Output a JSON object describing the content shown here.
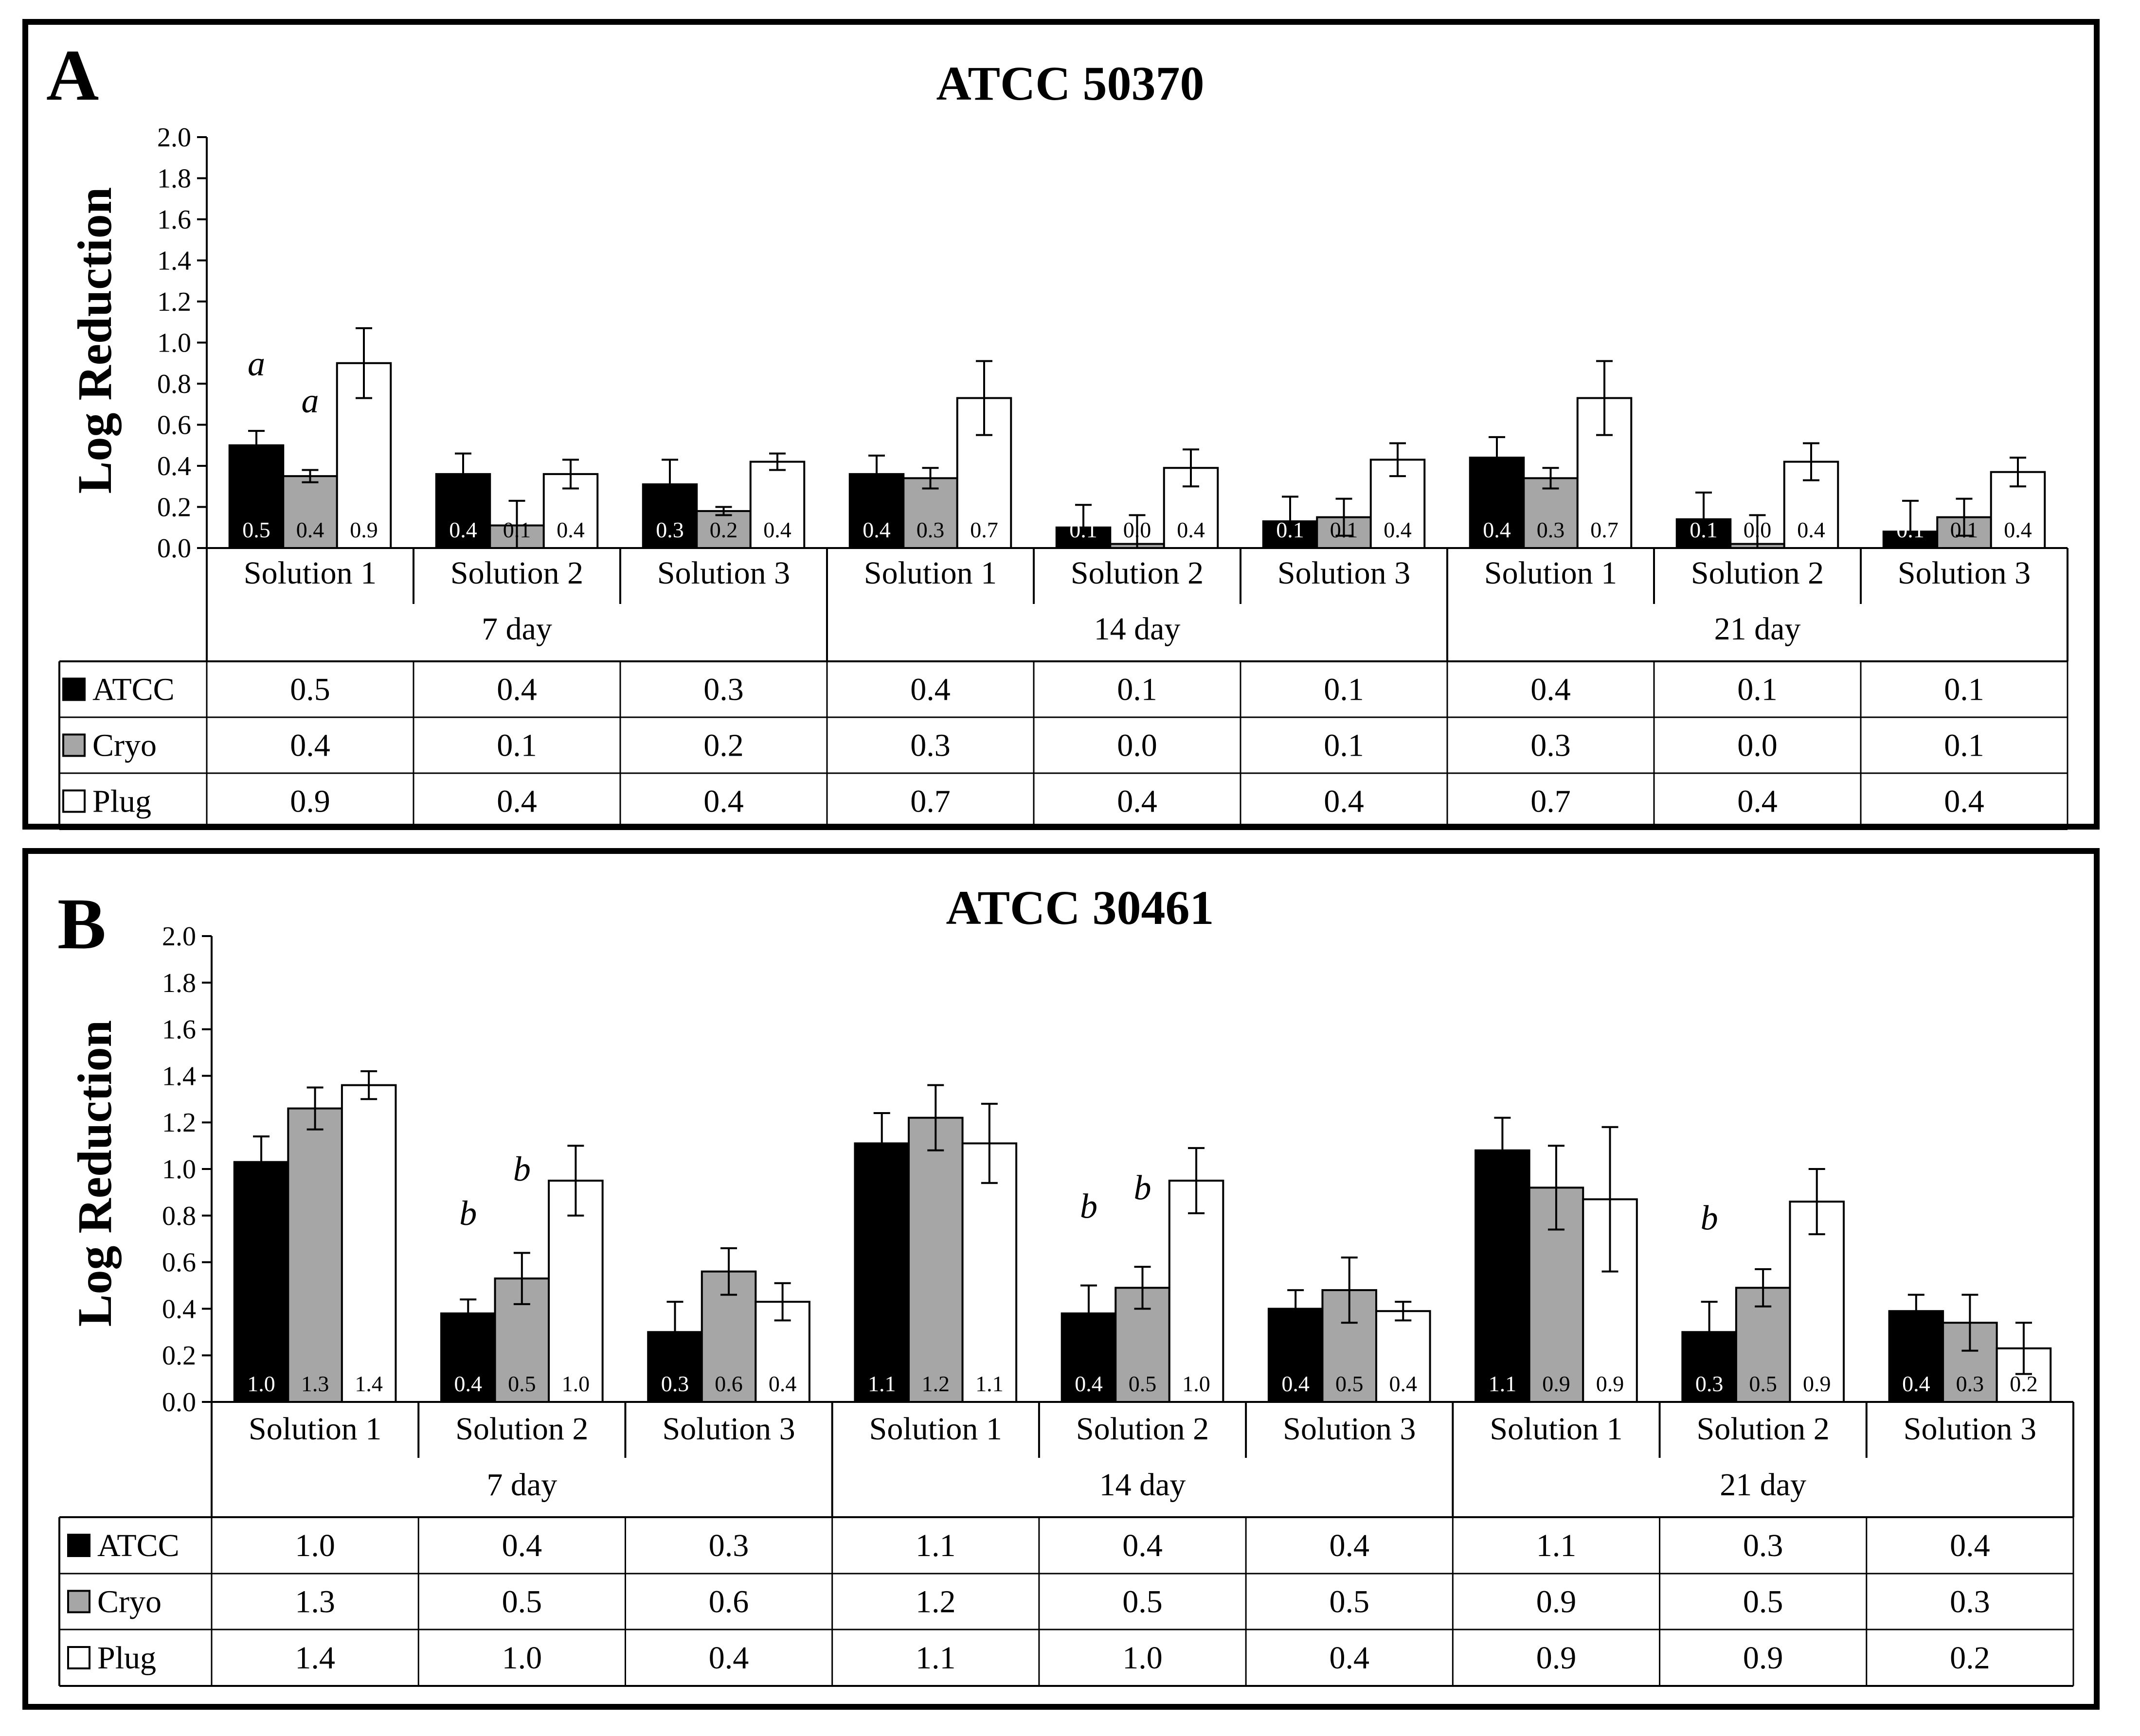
{
  "legend_colors": {
    "ATCC": "#000000",
    "Cryo": "#a6a6a6",
    "Plug": "#ffffff"
  },
  "chart_data": [
    {
      "type": "bar",
      "panel_letter": "A",
      "title": "ATCC 50370",
      "ylabel": "Log Reduction",
      "xlabel": "",
      "ylim": [
        0,
        2.0
      ],
      "yticks": [
        "0.0",
        "0.2",
        "0.4",
        "0.6",
        "0.8",
        "1.0",
        "1.2",
        "1.4",
        "1.6",
        "1.8",
        "2.0"
      ],
      "groups": [
        "7 day",
        "14 day",
        "21 day"
      ],
      "categories": [
        "Solution 1",
        "Solution 2",
        "Solution 3",
        "Solution 1",
        "Solution 2",
        "Solution 3",
        "Solution 1",
        "Solution 2",
        "Solution 3"
      ],
      "series": [
        {
          "name": "ATCC",
          "values": [
            0.5,
            0.36,
            0.31,
            0.36,
            0.1,
            0.13,
            0.44,
            0.14,
            0.08
          ],
          "errors": [
            0.07,
            0.1,
            0.12,
            0.09,
            0.11,
            0.12,
            0.1,
            0.13,
            0.15
          ],
          "labels": [
            "0.5",
            "0.4",
            "0.3",
            "0.4",
            "0.1",
            "0.1",
            "0.4",
            "0.1",
            "0.1"
          ]
        },
        {
          "name": "Cryo",
          "values": [
            0.35,
            0.11,
            0.18,
            0.34,
            0.02,
            0.15,
            0.34,
            0.02,
            0.15
          ],
          "errors": [
            0.03,
            0.12,
            0.02,
            0.05,
            0.14,
            0.09,
            0.05,
            0.14,
            0.09
          ],
          "labels": [
            "0.4",
            "0.1",
            "0.2",
            "0.3",
            "0.0",
            "0.1",
            "0.3",
            "0.0",
            "0.1"
          ]
        },
        {
          "name": "Plug",
          "values": [
            0.9,
            0.36,
            0.42,
            0.73,
            0.39,
            0.43,
            0.73,
            0.42,
            0.37
          ],
          "errors": [
            0.17,
            0.07,
            0.04,
            0.18,
            0.09,
            0.08,
            0.18,
            0.09,
            0.07
          ],
          "labels": [
            "0.9",
            "0.4",
            "0.4",
            "0.7",
            "0.4",
            "0.4",
            "0.7",
            "0.4",
            "0.4"
          ]
        }
      ],
      "annotations": [
        {
          "text": "a",
          "category_index": 0,
          "series": "ATCC",
          "value": 0.84
        },
        {
          "text": "a",
          "category_index": 0,
          "series": "Cryo",
          "value": 0.66
        }
      ],
      "table": {
        "rows": [
          {
            "name": "ATCC",
            "values": [
              "0.5",
              "0.4",
              "0.3",
              "0.4",
              "0.1",
              "0.1",
              "0.4",
              "0.1",
              "0.1"
            ]
          },
          {
            "name": "Cryo",
            "values": [
              "0.4",
              "0.1",
              "0.2",
              "0.3",
              "0.0",
              "0.1",
              "0.3",
              "0.0",
              "0.1"
            ]
          },
          {
            "name": "Plug",
            "values": [
              "0.9",
              "0.4",
              "0.4",
              "0.7",
              "0.4",
              "0.4",
              "0.7",
              "0.4",
              "0.4"
            ]
          }
        ]
      }
    },
    {
      "type": "bar",
      "panel_letter": "B",
      "title": "ATCC 30461",
      "ylabel": "Log Reduction",
      "xlabel": "",
      "ylim": [
        0,
        2.0
      ],
      "yticks": [
        "0.0",
        "0.2",
        "0.4",
        "0.6",
        "0.8",
        "1.0",
        "1.2",
        "1.4",
        "1.6",
        "1.8",
        "2.0"
      ],
      "groups": [
        "7 day",
        "14 day",
        "21 day"
      ],
      "categories": [
        "Solution 1",
        "Solution 2",
        "Solution 3",
        "Solution 1",
        "Solution 2",
        "Solution 3",
        "Solution 1",
        "Solution 2",
        "Solution 3"
      ],
      "series": [
        {
          "name": "ATCC",
          "values": [
            1.03,
            0.38,
            0.3,
            1.11,
            0.38,
            0.4,
            1.08,
            0.3,
            0.39
          ],
          "errors": [
            0.11,
            0.06,
            0.13,
            0.13,
            0.12,
            0.08,
            0.14,
            0.13,
            0.07
          ],
          "labels": [
            "1.0",
            "0.4",
            "0.3",
            "1.1",
            "0.4",
            "0.4",
            "1.1",
            "0.3",
            "0.4"
          ]
        },
        {
          "name": "Cryo",
          "values": [
            1.26,
            0.53,
            0.56,
            1.22,
            0.49,
            0.48,
            0.92,
            0.49,
            0.34
          ],
          "errors": [
            0.09,
            0.11,
            0.1,
            0.14,
            0.09,
            0.14,
            0.18,
            0.08,
            0.12
          ],
          "labels": [
            "1.3",
            "0.5",
            "0.6",
            "1.2",
            "0.5",
            "0.5",
            "0.9",
            "0.5",
            "0.3"
          ]
        },
        {
          "name": "Plug",
          "values": [
            1.36,
            0.95,
            0.43,
            1.11,
            0.95,
            0.39,
            0.87,
            0.86,
            0.23
          ],
          "errors": [
            0.06,
            0.15,
            0.08,
            0.17,
            0.14,
            0.04,
            0.31,
            0.14,
            0.11
          ],
          "labels": [
            "1.4",
            "1.0",
            "0.4",
            "1.1",
            "1.0",
            "0.4",
            "0.9",
            "0.9",
            "0.2"
          ]
        }
      ],
      "annotations": [
        {
          "text": "b",
          "category_index": 1,
          "series": "ATCC",
          "value": 0.76
        },
        {
          "text": "b",
          "category_index": 1,
          "series": "Cryo",
          "value": 0.95
        },
        {
          "text": "b",
          "category_index": 4,
          "series": "ATCC",
          "value": 0.79
        },
        {
          "text": "b",
          "category_index": 4,
          "series": "Cryo",
          "value": 0.87
        },
        {
          "text": "b",
          "category_index": 7,
          "series": "ATCC",
          "value": 0.74
        }
      ],
      "table": {
        "rows": [
          {
            "name": "ATCC",
            "values": [
              "1.0",
              "0.4",
              "0.3",
              "1.1",
              "0.4",
              "0.4",
              "1.1",
              "0.3",
              "0.4"
            ]
          },
          {
            "name": "Cryo",
            "values": [
              "1.3",
              "0.5",
              "0.6",
              "1.2",
              "0.5",
              "0.5",
              "0.9",
              "0.5",
              "0.3"
            ]
          },
          {
            "name": "Plug",
            "values": [
              "1.4",
              "1.0",
              "0.4",
              "1.1",
              "1.0",
              "0.4",
              "0.9",
              "0.9",
              "0.2"
            ]
          }
        ]
      }
    }
  ]
}
